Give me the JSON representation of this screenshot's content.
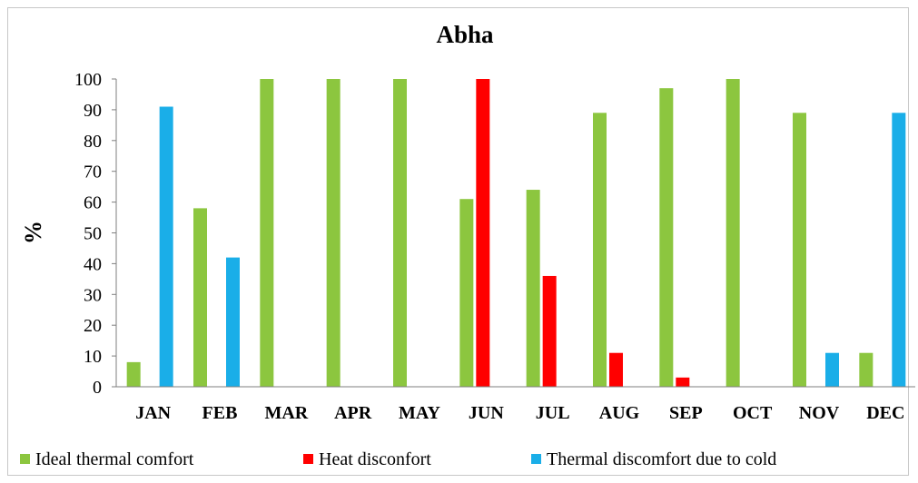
{
  "chart_data": {
    "type": "bar",
    "title": "Abha",
    "xlabel": "",
    "ylabel": "%",
    "ylim": [
      0,
      100
    ],
    "yticks": [
      0,
      10,
      20,
      30,
      40,
      50,
      60,
      70,
      80,
      90,
      100
    ],
    "grid": false,
    "legend_position": "bottom",
    "categories": [
      "JAN",
      "FEB",
      "MAR",
      "APR",
      "MAY",
      "JUN",
      "JUL",
      "AUG",
      "SEP",
      "OCT",
      "NOV",
      "DEC"
    ],
    "series": [
      {
        "name": "Ideal thermal comfort",
        "color": "#8cc63f",
        "values": [
          8,
          58,
          100,
          100,
          100,
          61,
          64,
          89,
          97,
          100,
          89,
          11
        ]
      },
      {
        "name": "Heat disconfort",
        "color": "#ff0000",
        "values": [
          0,
          0,
          0,
          0,
          0,
          100,
          36,
          11,
          3,
          0,
          0,
          0
        ]
      },
      {
        "name": "Thermal discomfort due to cold",
        "color": "#1aaee8",
        "values": [
          91,
          42,
          0,
          0,
          0,
          0,
          0,
          0,
          0,
          0,
          11,
          89
        ]
      }
    ]
  }
}
